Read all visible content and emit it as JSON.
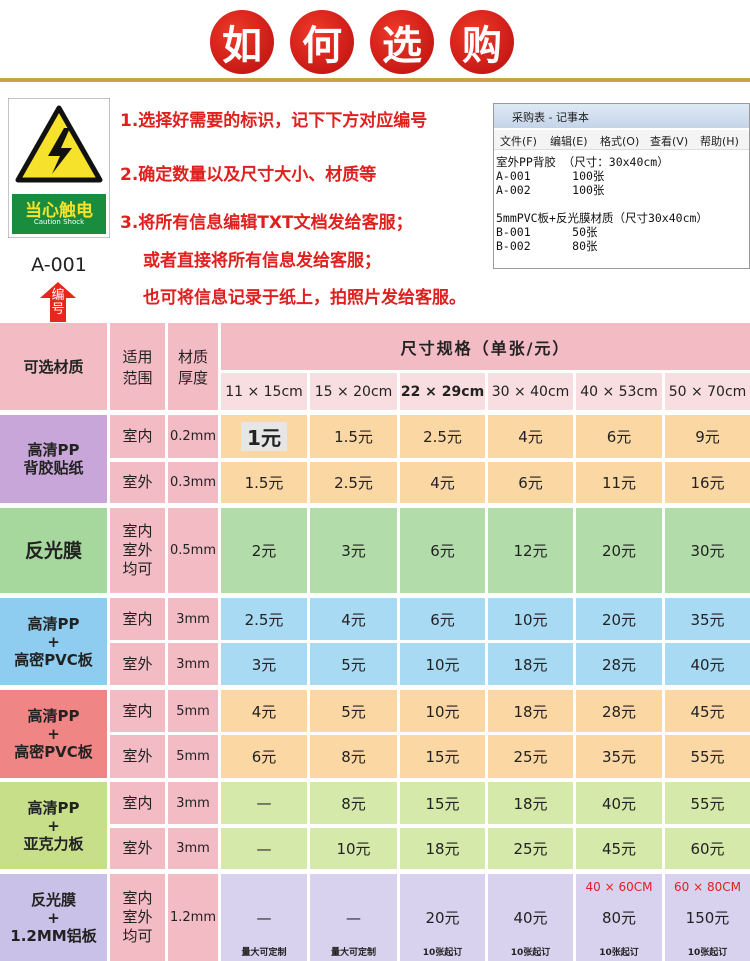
{
  "header": {
    "title_chars": [
      "如",
      "何",
      "选",
      "购"
    ]
  },
  "sign": {
    "label": "当心触电",
    "label_en": "Caution Shock",
    "code": "A-001",
    "arrow_text": "编号"
  },
  "steps": [
    "1.选择好需要的标识，记下下方对应编号",
    "2.确定数量以及尺寸大小、材质等",
    "3.将所有信息编辑TXT文档发给客服；",
    "或者直接将所有信息发给客服；",
    "也可将信息记录于纸上，拍照片发给客服。"
  ],
  "notepad": {
    "title": "采购表 - 记事本",
    "menu": [
      "文件(F)",
      "编辑(E)",
      "格式(O)",
      "查看(V)",
      "帮助(H)"
    ],
    "blocks": [
      [
        "室外PP背胶 （尺寸：30x40cm）",
        "A-001      100张",
        "A-002      100张"
      ],
      [
        "5mmPVC板+反光膜材质（尺寸30x40cm）",
        "B-001      50张",
        "B-002      80张"
      ]
    ]
  },
  "table": {
    "headers": {
      "material": "可选材质",
      "scope": [
        "适用",
        "范围"
      ],
      "thickness": [
        "材质",
        "厚度"
      ],
      "size": "尺寸规格（单张/元）",
      "sizes": [
        "11 × 15cm",
        "15 × 20cm",
        "22 × 29cm",
        "30 × 40cm",
        "40 × 53cm",
        "50 × 70cm"
      ]
    },
    "groups": [
      {
        "material": [
          "高清PP",
          "背胶贴纸"
        ],
        "color": "#c9a6d9",
        "cell_color": "#fbd7a3",
        "rows": [
          {
            "scope": [
              "室内"
            ],
            "thickness": "0.2mm",
            "prices": [
              "1元",
              "1.5元",
              "2.5元",
              "4元",
              "6元",
              "9元"
            ]
          },
          {
            "scope": [
              "室外"
            ],
            "thickness": "0.3mm",
            "prices": [
              "1.5元",
              "2.5元",
              "4元",
              "6元",
              "11元",
              "16元"
            ]
          }
        ]
      },
      {
        "material": [
          "反光膜"
        ],
        "color": "#a6d79d",
        "cell_color": "#b2dcaa",
        "rows": [
          {
            "scope": [
              "室内",
              "室外",
              "均可"
            ],
            "thickness": "0.5mm",
            "prices": [
              "2元",
              "3元",
              "6元",
              "12元",
              "20元",
              "30元"
            ]
          }
        ]
      },
      {
        "material": [
          "高清PP",
          "+",
          "高密PVC板"
        ],
        "color": "#8ecdf0",
        "cell_color": "#a9daf3",
        "rows": [
          {
            "scope": [
              "室内"
            ],
            "thickness": "3mm",
            "prices": [
              "2.5元",
              "4元",
              "6元",
              "10元",
              "20元",
              "35元"
            ]
          },
          {
            "scope": [
              "室外"
            ],
            "thickness": "3mm",
            "prices": [
              "3元",
              "5元",
              "10元",
              "18元",
              "28元",
              "40元"
            ]
          }
        ]
      },
      {
        "material": [
          "高清PP",
          "+",
          "高密PVC板"
        ],
        "color": "#f08585",
        "cell_color": "#fbd7a3",
        "rows": [
          {
            "scope": [
              "室内"
            ],
            "thickness": "5mm",
            "prices": [
              "4元",
              "5元",
              "10元",
              "18元",
              "28元",
              "45元"
            ]
          },
          {
            "scope": [
              "室外"
            ],
            "thickness": "5mm",
            "prices": [
              "6元",
              "8元",
              "15元",
              "25元",
              "35元",
              "55元"
            ]
          }
        ]
      },
      {
        "material": [
          "高清PP",
          "+",
          "亚克力板"
        ],
        "color": "#c6df88",
        "cell_color": "#d5e9aa",
        "rows": [
          {
            "scope": [
              "室内"
            ],
            "thickness": "3mm",
            "prices": [
              "—",
              "8元",
              "15元",
              "18元",
              "40元",
              "55元"
            ]
          },
          {
            "scope": [
              "室外"
            ],
            "thickness": "3mm",
            "prices": [
              "—",
              "10元",
              "18元",
              "25元",
              "45元",
              "60元"
            ]
          }
        ]
      },
      {
        "material": [
          "反光膜",
          "+",
          "1.2MM铝板"
        ],
        "color": "#c9c1e7",
        "cell_color": "#d9d2ef",
        "rows": [
          {
            "scope": [
              "室内",
              "室外",
              "均可"
            ],
            "thickness": "1.2mm",
            "prices": [
              "—",
              "—",
              "20元",
              "40元",
              "80元",
              "150元"
            ],
            "notes": [
              "量大可定制",
              "量大可定制",
              "10张起订",
              "10张起订",
              "10张起订",
              "10张起订"
            ],
            "size_overrides": [
              null,
              null,
              null,
              null,
              "40 × 60CM",
              "60 × 80CM"
            ]
          }
        ]
      }
    ]
  }
}
